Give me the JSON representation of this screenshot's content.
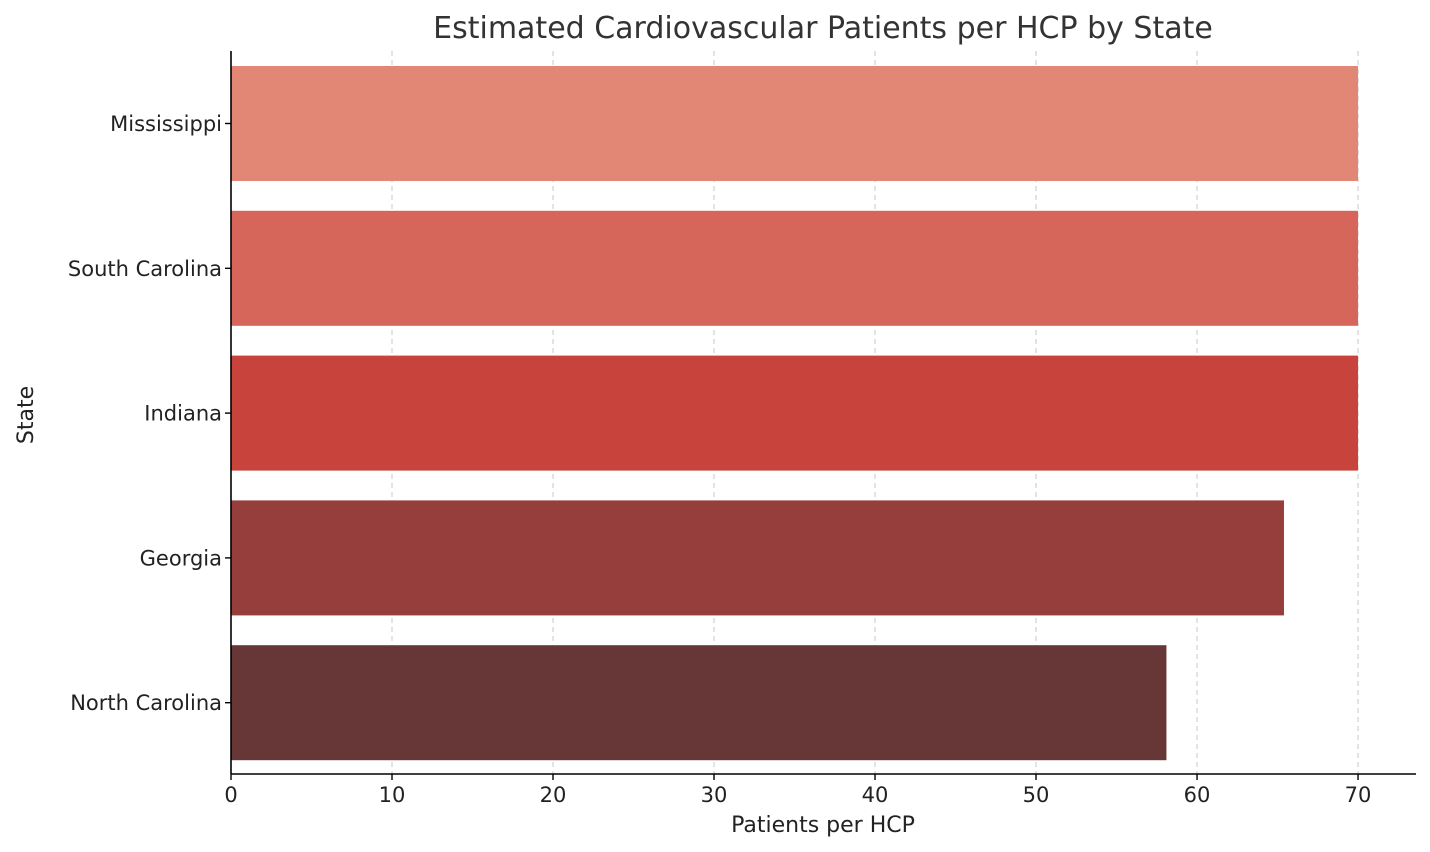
{
  "chart_data": {
    "type": "bar",
    "orientation": "horizontal",
    "title": "Estimated Cardiovascular Patients per HCP by State",
    "xlabel": "Patients per HCP",
    "ylabel": "State",
    "categories": [
      "Mississippi",
      "South Carolina",
      "Indiana",
      "Georgia",
      "North Carolina"
    ],
    "values": [
      70,
      70,
      70,
      65.4,
      58.1
    ],
    "colors": [
      "#e28776",
      "#d6665a",
      "#c9433d",
      "#963e3b",
      "#673636"
    ],
    "xlim": [
      0,
      73.6
    ],
    "xticks": [
      0,
      10,
      20,
      30,
      40,
      50,
      60,
      70
    ],
    "grid": "x-dashed",
    "legend": "none"
  }
}
